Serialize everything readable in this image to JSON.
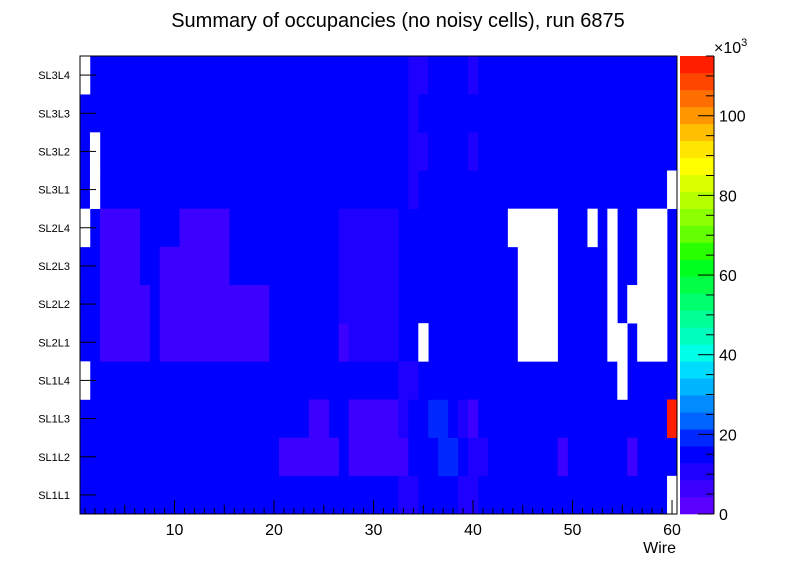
{
  "chart_data": {
    "type": "heatmap",
    "title": "Summary of occupancies (no noisy cells), run 6875",
    "xlabel": "Wire",
    "ylabel": "",
    "xlim": [
      0.5,
      60.5
    ],
    "x_ticks": [
      10,
      20,
      30,
      40,
      50,
      60
    ],
    "rows": [
      "SL1L1",
      "SL1L2",
      "SL1L3",
      "SL1L4",
      "SL2L1",
      "SL2L2",
      "SL2L3",
      "SL2L4",
      "SL3L1",
      "SL3L2",
      "SL3L3",
      "SL3L4"
    ],
    "colorbar": {
      "min": 0,
      "max": 115,
      "ticks": [
        0,
        20,
        40,
        60,
        80,
        100
      ],
      "multiplier": "×10",
      "multiplier_exp": "3",
      "unit_scale": 1000
    },
    "palette": [
      "#5b00ff",
      "#3c00ff",
      "#1e00ff",
      "#0000ff",
      "#0028ff",
      "#0064ff",
      "#008cff",
      "#00b4ff",
      "#00dcff",
      "#00ffe6",
      "#00ffbe",
      "#00ff96",
      "#00ff6e",
      "#00ff46",
      "#00ff1e",
      "#28ff00",
      "#64ff00",
      "#8cff00",
      "#b4ff00",
      "#dcff00",
      "#ffff00",
      "#ffe600",
      "#ffbe00",
      "#ff9600",
      "#ff6e00",
      "#ff4600",
      "#ff1e00"
    ],
    "background_level": 3,
    "zero_color": "#ffffff",
    "rows_data": [
      {
        "row": "SL1L1",
        "runs": [
          [
            33,
            34,
            9
          ],
          [
            35,
            38,
            17
          ],
          [
            39,
            39,
            12
          ],
          [
            40,
            40,
            9
          ],
          [
            60,
            60,
            0
          ]
        ]
      },
      {
        "row": "SL1L2",
        "runs": [
          [
            21,
            26,
            8
          ],
          [
            28,
            33,
            8
          ],
          [
            34,
            36,
            15
          ],
          [
            37,
            38,
            19
          ],
          [
            39,
            39,
            15
          ],
          [
            40,
            41,
            9
          ],
          [
            49,
            49,
            8
          ],
          [
            56,
            56,
            8
          ]
        ]
      },
      {
        "row": "SL1L3",
        "runs": [
          [
            24,
            25,
            8
          ],
          [
            28,
            32,
            8
          ],
          [
            33,
            33,
            12
          ],
          [
            34,
            35,
            15
          ],
          [
            36,
            37,
            19
          ],
          [
            38,
            38,
            15
          ],
          [
            39,
            39,
            10
          ],
          [
            40,
            40,
            8
          ],
          [
            60,
            60,
            112
          ]
        ]
      },
      {
        "row": "SL1L4",
        "runs": [
          [
            1,
            1,
            0
          ],
          [
            33,
            34,
            9
          ],
          [
            35,
            39,
            17
          ],
          [
            55,
            55,
            0
          ]
        ]
      },
      {
        "row": "SL2L1",
        "runs": [
          [
            3,
            7,
            7
          ],
          [
            9,
            19,
            7
          ],
          [
            27,
            27,
            8
          ],
          [
            28,
            28,
            9
          ],
          [
            29,
            29,
            12
          ],
          [
            30,
            32,
            9
          ],
          [
            35,
            35,
            0
          ],
          [
            45,
            48,
            0
          ],
          [
            54,
            55,
            0
          ],
          [
            57,
            59,
            0
          ]
        ]
      },
      {
        "row": "SL2L2",
        "runs": [
          [
            3,
            7,
            7
          ],
          [
            9,
            19,
            7
          ],
          [
            27,
            32,
            9
          ],
          [
            45,
            48,
            0
          ],
          [
            54,
            54,
            0
          ],
          [
            56,
            56,
            0
          ],
          [
            57,
            59,
            0
          ]
        ]
      },
      {
        "row": "SL2L3",
        "runs": [
          [
            3,
            6,
            7
          ],
          [
            9,
            15,
            7
          ],
          [
            27,
            32,
            9
          ],
          [
            45,
            48,
            0
          ],
          [
            54,
            54,
            0
          ],
          [
            57,
            59,
            0
          ]
        ]
      },
      {
        "row": "SL2L4",
        "runs": [
          [
            1,
            1,
            0
          ],
          [
            3,
            6,
            7
          ],
          [
            11,
            15,
            7
          ],
          [
            27,
            32,
            9
          ],
          [
            44,
            48,
            0
          ],
          [
            52,
            52,
            0
          ],
          [
            54,
            54,
            0
          ],
          [
            57,
            59,
            0
          ]
        ]
      },
      {
        "row": "SL3L1",
        "runs": [
          [
            2,
            2,
            0
          ],
          [
            34,
            34,
            9
          ],
          [
            35,
            39,
            17
          ],
          [
            60,
            60,
            0
          ]
        ]
      },
      {
        "row": "SL3L2",
        "runs": [
          [
            2,
            2,
            0
          ],
          [
            34,
            34,
            9
          ],
          [
            35,
            35,
            12
          ],
          [
            36,
            39,
            17
          ],
          [
            40,
            40,
            9
          ]
        ]
      },
      {
        "row": "SL3L3",
        "runs": [
          [
            34,
            34,
            9
          ],
          [
            35,
            39,
            17
          ]
        ]
      },
      {
        "row": "SL3L4",
        "runs": [
          [
            1,
            1,
            0
          ],
          [
            34,
            34,
            9
          ],
          [
            35,
            35,
            12
          ],
          [
            36,
            39,
            17
          ],
          [
            40,
            40,
            9
          ]
        ]
      }
    ]
  }
}
